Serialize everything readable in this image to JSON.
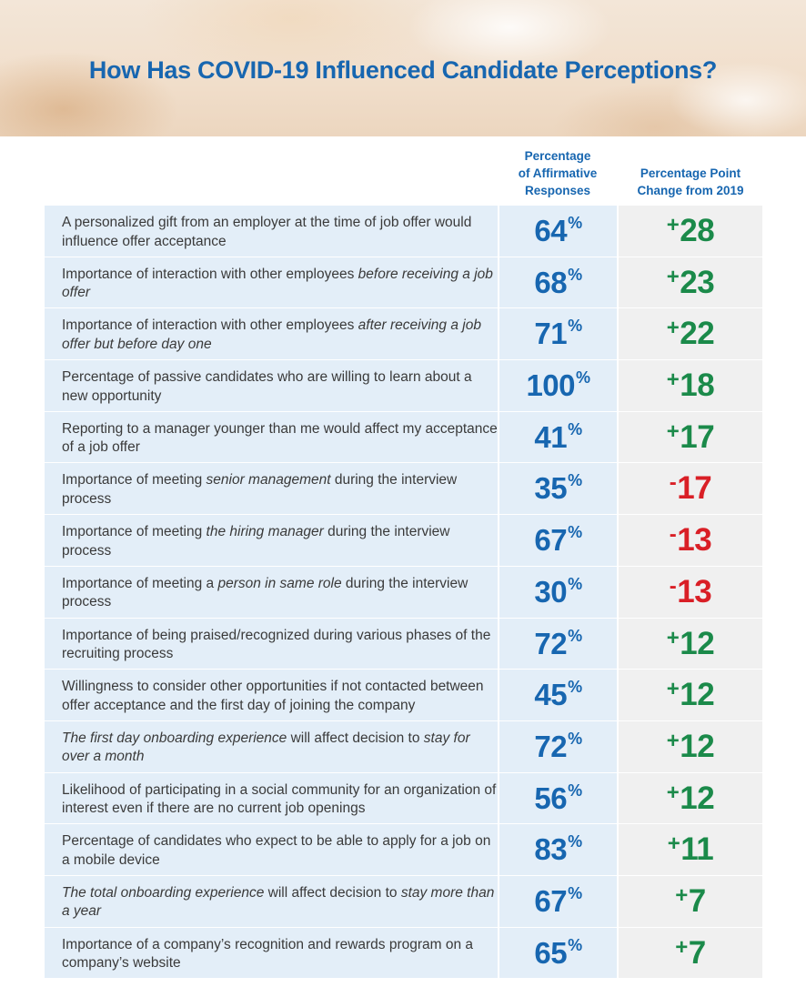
{
  "title": "How Has COVID-19 Influenced Candidate Perceptions?",
  "columns": {
    "pct_header": "Percentage\nof Affirmative\nResponses",
    "change_header": "Percentage Point\nChange from 2019"
  },
  "colors": {
    "title": "#1766b0",
    "positive": "#1b8a4a",
    "negative": "#d91f26",
    "row_bg": "#e3eef8",
    "change_bg": "#f0f0f0"
  },
  "chart_data": {
    "type": "table",
    "title": "How Has COVID-19 Influenced Candidate Perceptions?",
    "columns": [
      "",
      "Percentage of Affirmative Responses",
      "Percentage Point Change from 2019"
    ],
    "rows": [
      {
        "label_parts": [
          {
            "t": "A personalized gift from an employer at the time of job offer would influence offer acceptance",
            "i": false
          }
        ],
        "pct": 64,
        "pct_unit": "%",
        "change_sign": "+",
        "change": "28"
      },
      {
        "label_parts": [
          {
            "t": "Importance of interaction with other employees ",
            "i": false
          },
          {
            "t": "before receiving a job offer",
            "i": true
          }
        ],
        "pct": 68,
        "pct_unit": "%",
        "change_sign": "+",
        "change": "23"
      },
      {
        "label_parts": [
          {
            "t": "Importance of interaction with other employees ",
            "i": false
          },
          {
            "t": "after receiving a job offer but before day one",
            "i": true
          }
        ],
        "pct": 71,
        "pct_unit": "%",
        "change_sign": "+",
        "change": "22"
      },
      {
        "label_parts": [
          {
            "t": "Percentage of passive candidates who are willing to learn about a new opportunity",
            "i": false
          }
        ],
        "pct": 100,
        "pct_unit": "%",
        "change_sign": "+",
        "change": "18"
      },
      {
        "label_parts": [
          {
            "t": "Reporting to a manager younger than me would affect my acceptance of a job offer",
            "i": false
          }
        ],
        "pct": 41,
        "pct_unit": "%",
        "change_sign": "+",
        "change": "17"
      },
      {
        "label_parts": [
          {
            "t": "Importance of meeting ",
            "i": false
          },
          {
            "t": "senior management",
            "i": true
          },
          {
            "t": " during the interview process",
            "i": false
          }
        ],
        "pct": 35,
        "pct_unit": "%",
        "change_sign": "-",
        "change": "17"
      },
      {
        "label_parts": [
          {
            "t": "Importance of meeting ",
            "i": false
          },
          {
            "t": "the hiring manager",
            "i": true
          },
          {
            "t": " during the interview process",
            "i": false
          }
        ],
        "pct": 67,
        "pct_unit": "%",
        "change_sign": "-",
        "change": "13"
      },
      {
        "label_parts": [
          {
            "t": "Importance of meeting a ",
            "i": false
          },
          {
            "t": "person in same role",
            "i": true
          },
          {
            "t": " during the interview process",
            "i": false
          }
        ],
        "pct": 30,
        "pct_unit": "%",
        "change_sign": "-",
        "change": "13"
      },
      {
        "label_parts": [
          {
            "t": "Importance of being praised/recognized during various phases of the recruiting process",
            "i": false
          }
        ],
        "pct": 72,
        "pct_unit": "%",
        "change_sign": "+",
        "change": "12"
      },
      {
        "label_parts": [
          {
            "t": "Willingness to consider other opportunities if not contacted between offer acceptance and the first day of joining the company",
            "i": false
          }
        ],
        "pct": 45,
        "pct_unit": "%",
        "change_sign": "+",
        "change": "12"
      },
      {
        "label_parts": [
          {
            "t": "The first day onboarding experience",
            "i": true
          },
          {
            "t": " will affect decision to ",
            "i": false
          },
          {
            "t": "stay for over a month",
            "i": true
          }
        ],
        "pct": 72,
        "pct_unit": "%",
        "change_sign": "+",
        "change": "12"
      },
      {
        "label_parts": [
          {
            "t": "Likelihood of participating in a social community for an organization of interest even if there are no current job openings",
            "i": false
          }
        ],
        "pct": 56,
        "pct_unit": "%",
        "change_sign": "+",
        "change": "12"
      },
      {
        "label_parts": [
          {
            "t": "Percentage of candidates who expect to be able to apply for a job on a mobile device",
            "i": false
          }
        ],
        "pct": 83,
        "pct_unit": "%",
        "change_sign": "+",
        "change": "11"
      },
      {
        "label_parts": [
          {
            "t": "The total onboarding experience",
            "i": true
          },
          {
            "t": " will affect decision to ",
            "i": false
          },
          {
            "t": "stay more than a year",
            "i": true
          }
        ],
        "pct": 67,
        "pct_unit": "%",
        "change_sign": "+",
        "change": "7"
      },
      {
        "label_parts": [
          {
            "t": "Importance of a company’s recognition and rewards program on a company’s website",
            "i": false
          }
        ],
        "pct": 65,
        "pct_unit": "%",
        "change_sign": "+",
        "change": "7"
      }
    ]
  }
}
